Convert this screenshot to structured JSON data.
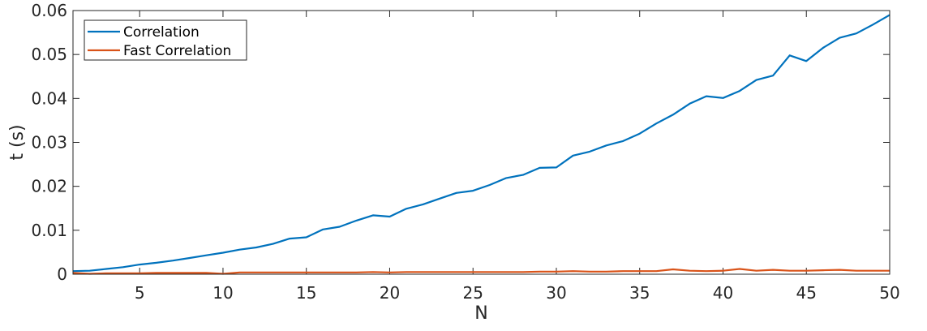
{
  "chart_data": {
    "type": "line",
    "xlabel": "N",
    "ylabel": "t (s)",
    "xlim": [
      1,
      50
    ],
    "ylim": [
      0,
      0.06
    ],
    "x_ticks": [
      5,
      10,
      15,
      20,
      25,
      30,
      35,
      40,
      45,
      50
    ],
    "y_ticks": [
      0,
      0.01,
      0.02,
      0.03,
      0.04,
      0.05,
      0.06
    ],
    "y_tick_labels": [
      "0",
      "0.01",
      "0.02",
      "0.03",
      "0.04",
      "0.05",
      "0.06"
    ],
    "grid": false,
    "legend_position": "top-left",
    "x": [
      1,
      2,
      3,
      4,
      5,
      6,
      7,
      8,
      9,
      10,
      11,
      12,
      13,
      14,
      15,
      16,
      17,
      18,
      19,
      20,
      21,
      22,
      23,
      24,
      25,
      26,
      27,
      28,
      29,
      30,
      31,
      32,
      33,
      34,
      35,
      36,
      37,
      38,
      39,
      40,
      41,
      42,
      43,
      44,
      45,
      46,
      47,
      48,
      49,
      50
    ],
    "series": [
      {
        "name": "Correlation",
        "color": "#0072BD",
        "values": [
          0.0007,
          0.0008,
          0.0012,
          0.0016,
          0.0022,
          0.0026,
          0.0031,
          0.0037,
          0.0043,
          0.0049,
          0.0056,
          0.0061,
          0.0069,
          0.0081,
          0.0084,
          0.0102,
          0.0108,
          0.0122,
          0.0134,
          0.0131,
          0.0149,
          0.0159,
          0.0172,
          0.0185,
          0.019,
          0.0203,
          0.0219,
          0.0226,
          0.0242,
          0.0243,
          0.027,
          0.0279,
          0.0293,
          0.0303,
          0.032,
          0.0343,
          0.0363,
          0.0388,
          0.0405,
          0.0401,
          0.0417,
          0.0442,
          0.0452,
          0.0498,
          0.0485,
          0.0515,
          0.0538,
          0.0548,
          0.0568,
          0.059
        ]
      },
      {
        "name": "Fast Correlation",
        "color": "#D95319",
        "values": [
          0.0003,
          0.0001,
          0.0002,
          0.0002,
          0.0002,
          0.0003,
          0.0003,
          0.0003,
          0.0003,
          0.0001,
          0.0004,
          0.0004,
          0.0004,
          0.0004,
          0.0004,
          0.0004,
          0.0004,
          0.0004,
          0.0005,
          0.0004,
          0.0005,
          0.0005,
          0.0005,
          0.0005,
          0.0005,
          0.0005,
          0.0005,
          0.0005,
          0.0006,
          0.0006,
          0.0007,
          0.0006,
          0.0006,
          0.0007,
          0.0007,
          0.0007,
          0.0011,
          0.0008,
          0.0007,
          0.0008,
          0.0012,
          0.0008,
          0.001,
          0.0008,
          0.0008,
          0.0009,
          0.001,
          0.0008,
          0.0008,
          0.0008
        ]
      }
    ]
  }
}
